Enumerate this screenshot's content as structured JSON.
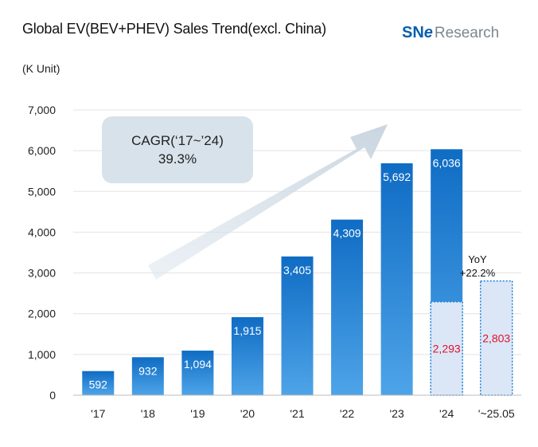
{
  "header": {
    "title": "Global EV(BEV+PHEV) Sales Trend(excl. China)",
    "unit": "(K Unit)",
    "logo_sn": "SN",
    "logo_e": "e",
    "logo_research": "Research"
  },
  "callout": {
    "line1": "CAGR(‘17~’24)",
    "line2": "39.3%"
  },
  "yoy": {
    "line1": "YoY",
    "line2": "+22.2%"
  },
  "colors": {
    "bar_top": "#0f6cc4",
    "bar_bottom": "#4ea4e8",
    "partial_fill": "#dbe7f7",
    "partial_border": "#1f7ed6",
    "partial_label": "#e0102a",
    "grid": "#e3e3e3",
    "callout_bg": "#d8e2ea"
  },
  "chart_data": {
    "type": "bar",
    "title": "Global EV(BEV+PHEV) Sales Trend(excl. China)",
    "ylabel": "(K Unit)",
    "xlabel": "",
    "ylim": [
      0,
      7000
    ],
    "yticks": [
      "0",
      "1,000",
      "2,000",
      "3,000",
      "4,000",
      "5,000",
      "6,000",
      "7,000"
    ],
    "categories": [
      "'17",
      "'18",
      "'19",
      "'20",
      "'21",
      "'22",
      "'23",
      "'24",
      "'~25.05"
    ],
    "values": [
      592,
      932,
      1094,
      1915,
      3405,
      4309,
      5692,
      6036,
      null
    ],
    "value_labels": [
      "592",
      "932",
      "1,094",
      "1,915",
      "3,405",
      "4,309",
      "5,692",
      "6,036",
      ""
    ],
    "partial_values": [
      null,
      null,
      null,
      null,
      null,
      null,
      null,
      2293,
      2803
    ],
    "partial_labels": [
      "",
      "",
      "",
      "",
      "",
      "",
      "",
      "2,293",
      "2,803"
    ],
    "grid": true,
    "annotations": [
      "CAGR(‘17~’24) 39.3%",
      "YoY +22.2%"
    ]
  }
}
